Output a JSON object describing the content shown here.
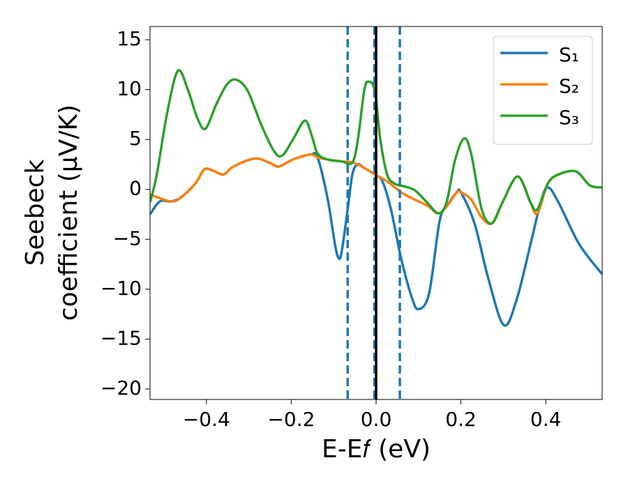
{
  "chart_data": {
    "type": "line",
    "xlabel": "E-E𝑓 (eV)",
    "ylabel": [
      "Seebeck",
      "coefficient  (μV/K)"
    ],
    "xlim": [
      -0.533,
      0.533
    ],
    "ylim": [
      -21.05,
      16.33
    ],
    "xticks": [
      {
        "value": -0.4,
        "label": "−0.4"
      },
      {
        "value": -0.2,
        "label": "−0.2"
      },
      {
        "value": 0.0,
        "label": "0.0"
      },
      {
        "value": 0.2,
        "label": "0.2"
      },
      {
        "value": 0.4,
        "label": "0.4"
      }
    ],
    "yticks": [
      {
        "value": -20,
        "label": "−20"
      },
      {
        "value": -15,
        "label": "−15"
      },
      {
        "value": -10,
        "label": "−10"
      },
      {
        "value": -5,
        "label": "−5"
      },
      0,
      5,
      10,
      15
    ],
    "legend": "upper right",
    "grid": false,
    "vlines": [
      {
        "x": -0.067,
        "color": "#1f77b4",
        "style": "dashed"
      },
      {
        "x": -0.004,
        "color": "#1f77b4",
        "style": "dashed"
      },
      {
        "x": 0.056,
        "color": "#1f77b4",
        "style": "dashed"
      },
      {
        "x": 0.0,
        "color": "#000000",
        "style": "solid"
      }
    ],
    "series": [
      {
        "name": "S₁",
        "color": "#1f77b4",
        "x": [
          -0.533,
          -0.51,
          -0.484,
          -0.46,
          -0.426,
          -0.405,
          -0.385,
          -0.36,
          -0.336,
          -0.286,
          -0.253,
          -0.229,
          -0.196,
          -0.155,
          -0.138,
          -0.114,
          -0.097,
          -0.088,
          -0.081,
          -0.067,
          -0.056,
          -0.044,
          -0.03,
          -0.003,
          0.015,
          0.035,
          0.059,
          0.084,
          0.1,
          0.125,
          0.15,
          0.17,
          0.19,
          0.2,
          0.232,
          0.265,
          0.301,
          0.331,
          0.364,
          0.388,
          0.405,
          0.43,
          0.479,
          0.533
        ],
        "values": [
          -2.5,
          -1.2,
          -1.2,
          -0.8,
          0.6,
          2.0,
          1.9,
          1.5,
          2.3,
          3.1,
          2.7,
          2.3,
          3.0,
          3.5,
          3.2,
          -1.0,
          -5.5,
          -6.9,
          -6.2,
          -2.0,
          1.5,
          2.5,
          2.2,
          1.5,
          0.8,
          -2.0,
          -6.9,
          -10.8,
          -12.0,
          -10.4,
          -3.1,
          -1.5,
          -0.3,
          -0.3,
          -3.4,
          -9.0,
          -13.6,
          -11.1,
          -5.5,
          -1.3,
          0.2,
          -1.3,
          -5.5,
          -8.5
        ]
      },
      {
        "name": "S₂",
        "color": "#ff7f0e",
        "x": [
          -0.533,
          -0.484,
          -0.46,
          -0.426,
          -0.405,
          -0.385,
          -0.36,
          -0.336,
          -0.286,
          -0.253,
          -0.229,
          -0.196,
          -0.155,
          -0.138,
          -0.114,
          -0.081,
          -0.056,
          -0.03,
          -0.003,
          0.026,
          0.067,
          0.12,
          0.147,
          0.17,
          0.19,
          0.2,
          0.224,
          0.249,
          0.273,
          0.298,
          0.334,
          0.364,
          0.38,
          0.405,
          0.43,
          0.471,
          0.504,
          0.533
        ],
        "values": [
          -0.5,
          -1.2,
          -0.8,
          0.6,
          2.0,
          1.9,
          1.5,
          2.3,
          3.1,
          2.7,
          2.3,
          3.0,
          3.5,
          3.2,
          3.0,
          2.8,
          2.7,
          2.2,
          1.5,
          0.8,
          -0.5,
          -1.6,
          -2.4,
          -1.5,
          -0.3,
          -0.3,
          -1.0,
          -2.8,
          -3.4,
          -1.3,
          1.3,
          -1.3,
          -2.4,
          0.6,
          1.5,
          1.8,
          0.4,
          0.2
        ]
      },
      {
        "name": "S₃",
        "color": "#2ca02c",
        "x": [
          -0.533,
          -0.517,
          -0.492,
          -0.467,
          -0.443,
          -0.421,
          -0.402,
          -0.377,
          -0.352,
          -0.33,
          -0.303,
          -0.27,
          -0.24,
          -0.221,
          -0.196,
          -0.168,
          -0.151,
          -0.138,
          -0.114,
          -0.081,
          -0.056,
          -0.043,
          -0.028,
          -0.018,
          -0.003,
          0.01,
          0.026,
          0.043,
          0.067,
          0.092,
          0.12,
          0.147,
          0.166,
          0.186,
          0.207,
          0.224,
          0.249,
          0.273,
          0.298,
          0.334,
          0.364,
          0.38,
          0.405,
          0.43,
          0.471,
          0.504,
          0.533
        ],
        "values": [
          -1.3,
          1.5,
          7.8,
          11.9,
          9.9,
          7.1,
          6.1,
          8.5,
          10.5,
          11.0,
          9.9,
          6.4,
          3.8,
          3.4,
          5.0,
          6.9,
          5.3,
          3.6,
          3.0,
          2.8,
          2.7,
          5.0,
          9.9,
          10.8,
          9.9,
          5.0,
          1.5,
          0.6,
          0.3,
          -0.1,
          -1.3,
          -2.4,
          -1.3,
          2.9,
          5.1,
          3.6,
          -2.0,
          -3.4,
          -1.3,
          1.3,
          -1.3,
          -2.0,
          0.6,
          1.5,
          1.8,
          0.4,
          0.2
        ]
      }
    ]
  }
}
